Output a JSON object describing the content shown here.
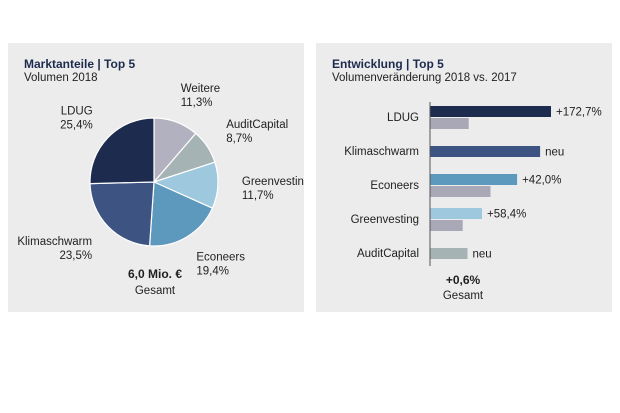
{
  "colors": {
    "panel_bg": "#ececec",
    "title": "#1c2b4e",
    "LDUG": "#1c2b4e",
    "Klimaschwarm": "#3d5483",
    "Econeers": "#5d98bd",
    "Greenvesting": "#9ec8de",
    "AuditCapital": "#a6b3b4",
    "Weitere": "#b2b1c0",
    "prior": "#a9a8b6"
  },
  "left_panel": {
    "title": "Marktanteile | Top 5",
    "subtitle": "Volumen 2018",
    "total_value": "6,0 Mio. €",
    "total_label": "Gesamt"
  },
  "right_panel": {
    "title": "Entwicklung | Top 5",
    "subtitle": "Volumenveränderung 2018 vs. 2017",
    "total_value": "+0,6%",
    "total_label": "Gesamt"
  },
  "chart_data": [
    {
      "type": "pie",
      "title": "Marktanteile | Top 5",
      "subtitle": "Volumen 2018",
      "slices": [
        {
          "name": "Weitere",
          "value": 11.3,
          "label": "11,3%",
          "color": "#b2b1c0"
        },
        {
          "name": "AuditCapital",
          "value": 8.7,
          "label": "8,7%",
          "color": "#a6b3b4"
        },
        {
          "name": "Greenvesting",
          "value": 11.7,
          "label": "11,7%",
          "color": "#9ec8de"
        },
        {
          "name": "Econeers",
          "value": 19.4,
          "label": "19,4%",
          "color": "#5d98bd"
        },
        {
          "name": "Klimaschwarm",
          "value": 23.5,
          "label": "23,5%",
          "color": "#3d5483"
        },
        {
          "name": "LDUG",
          "value": 25.4,
          "label": "25,4%",
          "color": "#1c2b4e"
        }
      ],
      "start": "12 o'clock, clockwise"
    },
    {
      "type": "bar",
      "orientation": "horizontal",
      "title": "Entwicklung | Top 5",
      "subtitle": "Volumenveränderung 2018 vs. 2017",
      "categories": [
        "LDUG",
        "Klimaschwarm",
        "Econeers",
        "Greenvesting",
        "AuditCapital"
      ],
      "series": [
        {
          "values": [
            1.0,
            0.91,
            0.72,
            0.43,
            0.31
          ]
        },
        {
          "values": [
            0.32,
            0,
            0.5,
            0.27,
            0
          ]
        }
      ],
      "value_scale": "relative volume (no axis printed)",
      "labels": [
        "+172,7%",
        "neu",
        "+42,0%",
        "+58,4%",
        "neu"
      ],
      "axis_line_at_start": true
    }
  ]
}
